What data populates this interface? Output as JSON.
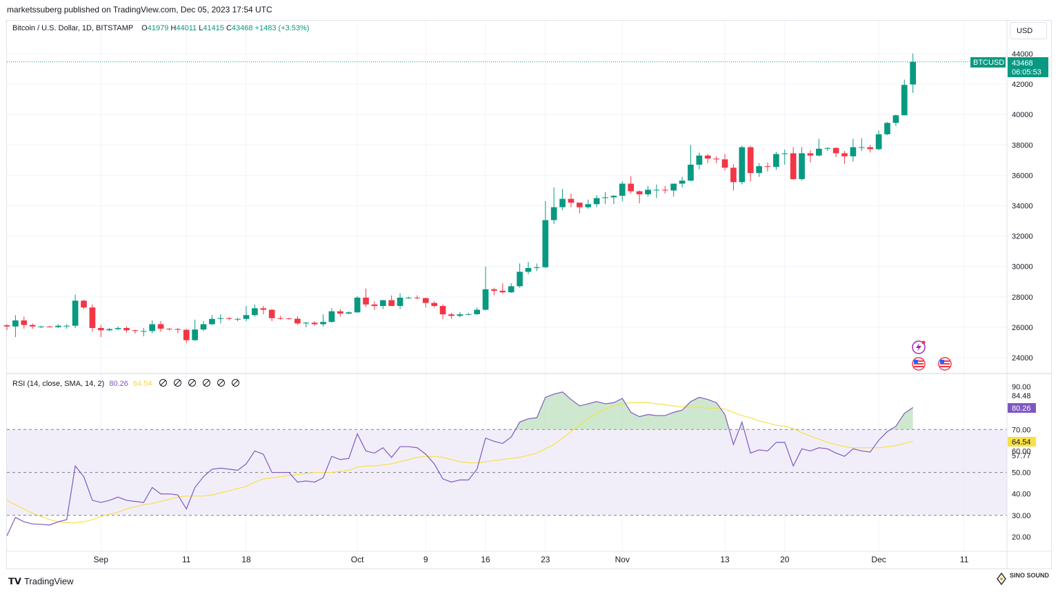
{
  "header": {
    "publish_line": "marketssuberg published on TradingView.com, Dec 05, 2023 17:54 UTC"
  },
  "legend": {
    "symbol": "Bitcoin / U.S. Dollar, 1D, BITSTAMP",
    "open_label": "O",
    "open": "41979",
    "high_label": "H",
    "high": "44011",
    "low_label": "L",
    "low": "41415",
    "close_label": "C",
    "close": "43468",
    "change": "+1483 (+3.53%)"
  },
  "currency_button": "USD",
  "price_tag": {
    "ticker": "BTCUSD",
    "price": "43468",
    "countdown": "06:05:53"
  },
  "rsi_legend": {
    "label": "RSI (14, close, SMA, 14, 2)",
    "rsi_value": "80.26",
    "sma_value": "64.54"
  },
  "rsi_axis_tags": {
    "upper": "84.48",
    "rsi": "80.26",
    "sma": "64.54",
    "lower": "57.77"
  },
  "footer": {
    "brand": "TradingView",
    "watermark": "SINO SOUND"
  },
  "colors": {
    "up": "#089981",
    "down": "#f23645",
    "rsi": "#7e57c2",
    "sma": "#f7e048",
    "band": "#ede7f6",
    "overbought_fill": "#a5d6a7",
    "grid": "#f0f3fa"
  },
  "icons": [
    "lightning-event-icon",
    "us-flag-event-icon",
    "us-flag-event-icon",
    "tradingview-logo-icon",
    "eye-hidden-icon"
  ],
  "chart_data": [
    {
      "type": "candlestick",
      "title": "Bitcoin / U.S. Dollar, 1D, BITSTAMP",
      "ylim": [
        22800,
        45000
      ],
      "y_ticks": [
        24000,
        26000,
        28000,
        30000,
        32000,
        34000,
        36000,
        38000,
        40000,
        42000,
        44000
      ],
      "x_tick_labels": [
        {
          "label": "Sep",
          "date": "2023-09-01"
        },
        {
          "label": "11",
          "date": "2023-09-11"
        },
        {
          "label": "18",
          "date": "2023-09-18"
        },
        {
          "label": "Oct",
          "date": "2023-10-01"
        },
        {
          "label": "9",
          "date": "2023-10-09"
        },
        {
          "label": "16",
          "date": "2023-10-16"
        },
        {
          "label": "23",
          "date": "2023-10-23"
        },
        {
          "label": "Nov",
          "date": "2023-11-01"
        },
        {
          "label": "13",
          "date": "2023-11-13"
        },
        {
          "label": "20",
          "date": "2023-11-20"
        },
        {
          "label": "Dec",
          "date": "2023-12-01"
        },
        {
          "label": "11",
          "date": "2023-12-11"
        }
      ],
      "x_range": [
        "2023-08-21",
        "2023-12-16"
      ],
      "last_price_line": 43468,
      "ohlc": [
        [
          "2023-08-21",
          26130,
          26200,
          25800,
          26050
        ],
        [
          "2023-08-22",
          26050,
          26800,
          25350,
          26450
        ],
        [
          "2023-08-23",
          26450,
          26700,
          25900,
          26150
        ],
        [
          "2023-08-24",
          26150,
          26250,
          25900,
          26050
        ],
        [
          "2023-08-25",
          26050,
          26100,
          25950,
          26050
        ],
        [
          "2023-08-26",
          26050,
          26100,
          25980,
          26010
        ],
        [
          "2023-08-27",
          26010,
          26200,
          25950,
          26100
        ],
        [
          "2023-08-28",
          26100,
          26200,
          25900,
          26100
        ],
        [
          "2023-08-29",
          26100,
          28150,
          25950,
          27750
        ],
        [
          "2023-08-30",
          27750,
          27800,
          27200,
          27300
        ],
        [
          "2023-08-31",
          27300,
          27500,
          25700,
          25950
        ],
        [
          "2023-09-01",
          25950,
          26150,
          25350,
          25800
        ],
        [
          "2023-09-02",
          25800,
          25950,
          25750,
          25880
        ],
        [
          "2023-09-03",
          25880,
          26050,
          25800,
          25950
        ],
        [
          "2023-09-04",
          25950,
          26050,
          25650,
          25800
        ],
        [
          "2023-09-05",
          25800,
          25850,
          25580,
          25750
        ],
        [
          "2023-09-06",
          25750,
          25950,
          25400,
          25750
        ],
        [
          "2023-09-07",
          25750,
          26450,
          25600,
          26200
        ],
        [
          "2023-09-08",
          26200,
          26400,
          25700,
          25900
        ],
        [
          "2023-09-09",
          25900,
          25950,
          25800,
          25880
        ],
        [
          "2023-09-10",
          25880,
          25950,
          25600,
          25830
        ],
        [
          "2023-09-11",
          25830,
          25900,
          24950,
          25150
        ],
        [
          "2023-09-12",
          25150,
          26500,
          25100,
          25850
        ],
        [
          "2023-09-13",
          25850,
          26400,
          25750,
          26200
        ],
        [
          "2023-09-14",
          26200,
          26800,
          26150,
          26550
        ],
        [
          "2023-09-15",
          26550,
          26850,
          26250,
          26600
        ],
        [
          "2023-09-16",
          26600,
          26650,
          26450,
          26550
        ],
        [
          "2023-09-17",
          26550,
          26620,
          26400,
          26550
        ],
        [
          "2023-09-18",
          26550,
          27400,
          26400,
          26800
        ],
        [
          "2023-09-19",
          26800,
          27500,
          26700,
          27250
        ],
        [
          "2023-09-20",
          27250,
          27400,
          26850,
          27150
        ],
        [
          "2023-09-21",
          27150,
          27200,
          26400,
          26600
        ],
        [
          "2023-09-22",
          26600,
          26750,
          26500,
          26580
        ],
        [
          "2023-09-23",
          26580,
          26620,
          26500,
          26560
        ],
        [
          "2023-09-24",
          26560,
          26720,
          26150,
          26250
        ],
        [
          "2023-09-25",
          26250,
          26350,
          26000,
          26300
        ],
        [
          "2023-09-26",
          26300,
          26400,
          26100,
          26200
        ],
        [
          "2023-09-27",
          26200,
          26850,
          26050,
          26350
        ],
        [
          "2023-09-28",
          26350,
          27250,
          26300,
          27050
        ],
        [
          "2023-09-29",
          27050,
          27200,
          26700,
          26900
        ],
        [
          "2023-09-30",
          26900,
          27050,
          26850,
          26980
        ],
        [
          "2023-10-01",
          26980,
          28050,
          26950,
          27950
        ],
        [
          "2023-10-02",
          27950,
          28550,
          27350,
          27500
        ],
        [
          "2023-10-03",
          27500,
          27700,
          27150,
          27400
        ],
        [
          "2023-10-04",
          27400,
          27800,
          27200,
          27780
        ],
        [
          "2023-10-05",
          27780,
          28100,
          27400,
          27400
        ],
        [
          "2023-10-06",
          27400,
          28250,
          27200,
          27950
        ],
        [
          "2023-10-07",
          27950,
          28000,
          27880,
          27950
        ],
        [
          "2023-10-08",
          27950,
          28100,
          27850,
          27920
        ],
        [
          "2023-10-09",
          27920,
          27950,
          27300,
          27600
        ],
        [
          "2023-10-10",
          27600,
          27700,
          27300,
          27400
        ],
        [
          "2023-10-11",
          27400,
          27500,
          26550,
          26850
        ],
        [
          "2023-10-12",
          26850,
          26950,
          26550,
          26750
        ],
        [
          "2023-10-13",
          26750,
          27000,
          26650,
          26850
        ],
        [
          "2023-10-14",
          26850,
          26950,
          26800,
          26860
        ],
        [
          "2023-10-15",
          26860,
          27300,
          26800,
          27150
        ],
        [
          "2023-10-16",
          27150,
          30000,
          27100,
          28500
        ],
        [
          "2023-10-17",
          28500,
          28600,
          28100,
          28400
        ],
        [
          "2023-10-18",
          28400,
          28900,
          28200,
          28300
        ],
        [
          "2023-10-19",
          28300,
          28900,
          28250,
          28700
        ],
        [
          "2023-10-20",
          28700,
          30200,
          28600,
          29650
        ],
        [
          "2023-10-21",
          29650,
          30300,
          29500,
          29900
        ],
        [
          "2023-10-22",
          29900,
          30200,
          29700,
          29950
        ],
        [
          "2023-10-23",
          29950,
          34300,
          29900,
          33050
        ],
        [
          "2023-10-24",
          33050,
          35200,
          32800,
          33900
        ],
        [
          "2023-10-25",
          33900,
          35100,
          33700,
          34450
        ],
        [
          "2023-10-26",
          34450,
          34800,
          33900,
          34200
        ],
        [
          "2023-10-27",
          34200,
          34200,
          33500,
          33900
        ],
        [
          "2023-10-28",
          33900,
          34400,
          33800,
          34100
        ],
        [
          "2023-10-29",
          34100,
          34700,
          33900,
          34500
        ],
        [
          "2023-10-30",
          34500,
          34900,
          34100,
          34550
        ],
        [
          "2023-10-31",
          34550,
          34700,
          34100,
          34650
        ],
        [
          "2023-11-01",
          34650,
          35600,
          34300,
          35450
        ],
        [
          "2023-11-02",
          35450,
          35950,
          34800,
          34950
        ],
        [
          "2023-11-03",
          34950,
          35000,
          34150,
          34750
        ],
        [
          "2023-11-04",
          34750,
          35300,
          34600,
          35050
        ],
        [
          "2023-11-05",
          35050,
          35400,
          34500,
          35050
        ],
        [
          "2023-11-06",
          35050,
          35300,
          34800,
          35000
        ],
        [
          "2023-11-07",
          35000,
          35400,
          34600,
          35450
        ],
        [
          "2023-11-08",
          35450,
          35900,
          35200,
          35650
        ],
        [
          "2023-11-09",
          35650,
          38000,
          35600,
          36700
        ],
        [
          "2023-11-10",
          36700,
          37500,
          36400,
          37300
        ],
        [
          "2023-11-11",
          37300,
          37400,
          36800,
          37100
        ],
        [
          "2023-11-12",
          37100,
          37250,
          36800,
          37050
        ],
        [
          "2023-11-13",
          37050,
          37400,
          36300,
          36500
        ],
        [
          "2023-11-14",
          36500,
          36750,
          35000,
          35550
        ],
        [
          "2023-11-15",
          35550,
          37950,
          35400,
          37850
        ],
        [
          "2023-11-16",
          37850,
          37950,
          35600,
          36150
        ],
        [
          "2023-11-17",
          36150,
          36800,
          35900,
          36600
        ],
        [
          "2023-11-18",
          36600,
          36850,
          36250,
          36550
        ],
        [
          "2023-11-19",
          36550,
          37550,
          36350,
          37400
        ],
        [
          "2023-11-20",
          37400,
          37700,
          36700,
          37450
        ],
        [
          "2023-11-21",
          37450,
          37850,
          35700,
          35750
        ],
        [
          "2023-11-22",
          35750,
          37850,
          35650,
          37450
        ],
        [
          "2023-11-23",
          37450,
          37650,
          36850,
          37300
        ],
        [
          "2023-11-24",
          37300,
          38400,
          37250,
          37750
        ],
        [
          "2023-11-25",
          37750,
          37850,
          37600,
          37800
        ],
        [
          "2023-11-26",
          37800,
          37850,
          37200,
          37450
        ],
        [
          "2023-11-27",
          37450,
          37600,
          36750,
          37250
        ],
        [
          "2023-11-28",
          37250,
          38400,
          36900,
          37850
        ],
        [
          "2023-11-29",
          37850,
          38450,
          37600,
          37850
        ],
        [
          "2023-11-30",
          37850,
          38000,
          37500,
          37720
        ],
        [
          "2023-12-01",
          37720,
          38950,
          37650,
          38700
        ],
        [
          "2023-12-02",
          38700,
          39500,
          38650,
          39450
        ],
        [
          "2023-12-03",
          39450,
          40000,
          39250,
          39950
        ],
        [
          "2023-12-04",
          39950,
          42300,
          39950,
          41950
        ],
        [
          "2023-12-05",
          41979,
          44011,
          41415,
          43468
        ]
      ]
    },
    {
      "type": "line",
      "title": "RSI (14, close, SMA, 14, 2)",
      "ylim": [
        15,
        95
      ],
      "y_ticks": [
        20,
        30,
        40,
        50,
        60,
        70,
        90
      ],
      "band": [
        30,
        70
      ],
      "dashed_levels": [
        30,
        50,
        70
      ],
      "series": [
        {
          "name": "RSI",
          "values": [
            20.5,
            29,
            27,
            26,
            25.8,
            25.5,
            27,
            28,
            53,
            48,
            37,
            36,
            37,
            38.5,
            37,
            36.5,
            36,
            43,
            40,
            40,
            39.5,
            33,
            43,
            48,
            51.5,
            52,
            51.5,
            51,
            54,
            60,
            58.5,
            50,
            50,
            50,
            45.5,
            46,
            45.5,
            47.5,
            57.5,
            56,
            56.5,
            68,
            60,
            59,
            61.5,
            57,
            62,
            62,
            61.5,
            58.5,
            54,
            47,
            45.5,
            46.5,
            46.5,
            51.5,
            66,
            64.5,
            63.5,
            66.5,
            73.5,
            75,
            75.5,
            85,
            86.5,
            87.5,
            84,
            81,
            82,
            83,
            82,
            82.5,
            84.5,
            78,
            76,
            77,
            76.5,
            76.5,
            78,
            79,
            83,
            85,
            84,
            82.5,
            77,
            63,
            73.5,
            59,
            60.5,
            60,
            64,
            64,
            53,
            61,
            60,
            61.5,
            61,
            59,
            57.5,
            61,
            60,
            59.5,
            65,
            69,
            71.5,
            77.5,
            80.26
          ]
        },
        {
          "name": "SMA",
          "values": [
            37,
            35,
            33,
            31,
            29.5,
            28,
            27,
            26.5,
            26.5,
            27,
            28,
            29.5,
            30.5,
            31.5,
            33,
            34,
            35,
            35.5,
            36.5,
            37.5,
            38.5,
            39,
            39,
            39,
            39.5,
            40.5,
            41.5,
            42.5,
            43.5,
            45.5,
            47,
            47.5,
            48,
            48.5,
            49,
            49.5,
            50,
            50,
            50,
            50.5,
            51,
            52.5,
            53,
            53,
            53.5,
            54,
            55,
            56,
            57,
            57.5,
            57.5,
            57,
            56,
            55,
            54.5,
            54.5,
            55,
            55.5,
            56,
            56.5,
            57,
            58,
            59,
            61,
            63,
            66,
            69,
            72,
            75,
            77.5,
            79.5,
            81,
            82,
            82.5,
            82.5,
            82.5,
            82,
            81.5,
            81,
            80.5,
            80.5,
            80.5,
            80,
            80,
            79.5,
            78,
            76.5,
            75.5,
            74,
            73,
            72,
            71.5,
            70.5,
            68.5,
            67,
            65.5,
            64,
            63,
            62,
            61.5,
            61.5,
            61.5,
            61.5,
            62,
            62.5,
            63.5,
            64.54
          ]
        }
      ]
    }
  ]
}
